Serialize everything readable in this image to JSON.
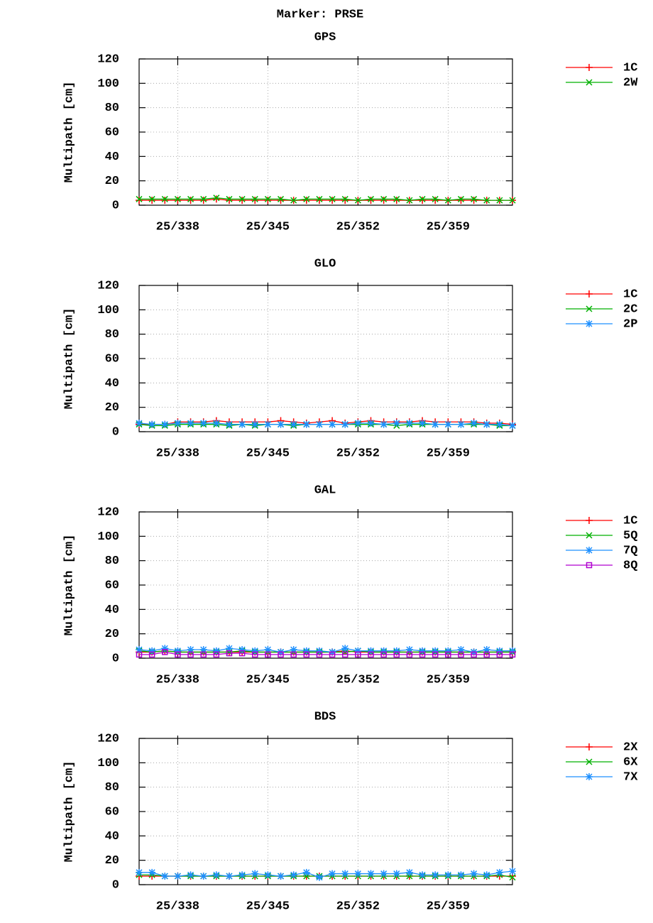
{
  "title": "Marker: PRSE",
  "chart_data": [
    {
      "type": "line",
      "title": "GPS",
      "ylabel": "Multipath [cm]",
      "x": [
        335,
        336,
        337,
        338,
        339,
        340,
        341,
        342,
        343,
        344,
        345,
        346,
        347,
        348,
        349,
        350,
        351,
        352,
        353,
        354,
        355,
        356,
        357,
        358,
        359,
        360,
        361,
        362,
        363,
        364
      ],
      "xlim": [
        335,
        364
      ],
      "xticks": [
        {
          "value": 338,
          "label": "25/338"
        },
        {
          "value": 345,
          "label": "25/345"
        },
        {
          "value": 352,
          "label": "25/352"
        },
        {
          "value": 359,
          "label": "25/359"
        }
      ],
      "ylim": [
        0,
        120
      ],
      "yticks": [
        0,
        20,
        40,
        60,
        80,
        100,
        120
      ],
      "grid": true,
      "series": [
        {
          "name": "1C",
          "color": "#ff0000",
          "marker": "plus",
          "values": [
            4,
            4,
            4,
            4,
            4,
            4,
            5,
            4,
            4,
            4,
            4,
            4,
            4,
            4,
            4,
            4,
            4,
            4,
            4,
            4,
            4,
            4,
            4,
            4,
            4,
            4,
            4,
            4,
            4,
            4
          ]
        },
        {
          "name": "2W",
          "color": "#00b000",
          "marker": "cross",
          "values": [
            5,
            5,
            5,
            5,
            5,
            5,
            6,
            5,
            5,
            5,
            5,
            5,
            4,
            5,
            5,
            5,
            5,
            4,
            5,
            5,
            5,
            4,
            5,
            5,
            4,
            5,
            5,
            4,
            4,
            4
          ]
        }
      ]
    },
    {
      "type": "line",
      "title": "GLO",
      "ylabel": "Multipath [cm]",
      "x": [
        335,
        336,
        337,
        338,
        339,
        340,
        341,
        342,
        343,
        344,
        345,
        346,
        347,
        348,
        349,
        350,
        351,
        352,
        353,
        354,
        355,
        356,
        357,
        358,
        359,
        360,
        361,
        362,
        363,
        364
      ],
      "xlim": [
        335,
        364
      ],
      "xticks": [
        {
          "value": 338,
          "label": "25/338"
        },
        {
          "value": 345,
          "label": "25/345"
        },
        {
          "value": 352,
          "label": "25/352"
        },
        {
          "value": 359,
          "label": "25/359"
        }
      ],
      "ylim": [
        0,
        120
      ],
      "yticks": [
        0,
        20,
        40,
        60,
        80,
        100,
        120
      ],
      "grid": true,
      "series": [
        {
          "name": "1C",
          "color": "#ff0000",
          "marker": "plus",
          "values": [
            6,
            6,
            6,
            8,
            8,
            8,
            9,
            8,
            8,
            8,
            8,
            9,
            8,
            7,
            8,
            9,
            7,
            8,
            9,
            8,
            8,
            8,
            9,
            8,
            8,
            8,
            8,
            7,
            7,
            6
          ]
        },
        {
          "name": "2C",
          "color": "#00b000",
          "marker": "cross",
          "values": [
            6,
            5,
            5,
            6,
            6,
            6,
            6,
            5,
            6,
            5,
            6,
            6,
            5,
            6,
            6,
            6,
            6,
            6,
            6,
            6,
            5,
            6,
            6,
            6,
            6,
            6,
            6,
            6,
            5,
            5
          ]
        },
        {
          "name": "2P",
          "color": "#1e90ff",
          "marker": "star",
          "values": [
            7,
            6,
            6,
            7,
            7,
            7,
            7,
            6,
            6,
            6,
            6,
            6,
            6,
            6,
            6,
            6,
            6,
            7,
            7,
            6,
            7,
            7,
            7,
            6,
            6,
            6,
            7,
            6,
            6,
            5
          ]
        }
      ]
    },
    {
      "type": "line",
      "title": "GAL",
      "ylabel": "Multipath [cm]",
      "x": [
        335,
        336,
        337,
        338,
        339,
        340,
        341,
        342,
        343,
        344,
        345,
        346,
        347,
        348,
        349,
        350,
        351,
        352,
        353,
        354,
        355,
        356,
        357,
        358,
        359,
        360,
        361,
        362,
        363,
        364
      ],
      "xlim": [
        335,
        364
      ],
      "xticks": [
        {
          "value": 338,
          "label": "25/338"
        },
        {
          "value": 345,
          "label": "25/345"
        },
        {
          "value": 352,
          "label": "25/352"
        },
        {
          "value": 359,
          "label": "25/359"
        }
      ],
      "ylim": [
        0,
        120
      ],
      "yticks": [
        0,
        20,
        40,
        60,
        80,
        100,
        120
      ],
      "grid": true,
      "series": [
        {
          "name": "1C",
          "color": "#ff0000",
          "marker": "plus",
          "values": [
            5,
            5,
            6,
            5,
            5,
            5,
            5,
            5,
            5,
            5,
            5,
            5,
            5,
            5,
            5,
            5,
            6,
            5,
            5,
            5,
            5,
            5,
            5,
            5,
            5,
            5,
            5,
            5,
            5,
            5
          ]
        },
        {
          "name": "5Q",
          "color": "#00b000",
          "marker": "cross",
          "values": [
            6,
            5,
            6,
            5,
            5,
            5,
            5,
            5,
            6,
            5,
            5,
            5,
            5,
            5,
            5,
            5,
            5,
            6,
            5,
            5,
            5,
            5,
            5,
            5,
            5,
            5,
            5,
            5,
            5,
            5
          ]
        },
        {
          "name": "7Q",
          "color": "#1e90ff",
          "marker": "star",
          "values": [
            7,
            6,
            8,
            6,
            7,
            7,
            6,
            8,
            7,
            6,
            7,
            5,
            7,
            6,
            6,
            5,
            8,
            6,
            6,
            6,
            6,
            7,
            6,
            6,
            6,
            7,
            5,
            7,
            6,
            6
          ]
        },
        {
          "name": "8Q",
          "color": "#b000d0",
          "marker": "square",
          "values": [
            3,
            3,
            5,
            3,
            3,
            3,
            3,
            4,
            4,
            3,
            3,
            3,
            3,
            3,
            3,
            3,
            3,
            3,
            3,
            3,
            3,
            3,
            3,
            3,
            3,
            3,
            3,
            3,
            3,
            3
          ]
        }
      ]
    },
    {
      "type": "line",
      "title": "BDS",
      "ylabel": "Multipath [cm]",
      "x": [
        335,
        336,
        337,
        338,
        339,
        340,
        341,
        342,
        343,
        344,
        345,
        346,
        347,
        348,
        349,
        350,
        351,
        352,
        353,
        354,
        355,
        356,
        357,
        358,
        359,
        360,
        361,
        362,
        363,
        364
      ],
      "xlim": [
        335,
        364
      ],
      "xticks": [
        {
          "value": 338,
          "label": "25/338"
        },
        {
          "value": 345,
          "label": "25/345"
        },
        {
          "value": 352,
          "label": "25/352"
        },
        {
          "value": 359,
          "label": "25/359"
        }
      ],
      "ylim": [
        0,
        120
      ],
      "yticks": [
        0,
        20,
        40,
        60,
        80,
        100,
        120
      ],
      "grid": true,
      "series": [
        {
          "name": "2X",
          "color": "#ff0000",
          "marker": "plus",
          "values": [
            7,
            7,
            7,
            7,
            7,
            7,
            7,
            7,
            7,
            7,
            7,
            7,
            7,
            7,
            7,
            7,
            7,
            7,
            7,
            7,
            7,
            7,
            7,
            7,
            7,
            7,
            7,
            7,
            7,
            7
          ]
        },
        {
          "name": "6X",
          "color": "#00b000",
          "marker": "cross",
          "values": [
            8,
            8,
            7,
            7,
            7,
            7,
            7,
            7,
            7,
            7,
            7,
            7,
            7,
            7,
            7,
            7,
            7,
            7,
            7,
            7,
            7,
            7,
            7,
            7,
            7,
            7,
            7,
            7,
            8,
            6
          ]
        },
        {
          "name": "7X",
          "color": "#1e90ff",
          "marker": "star",
          "values": [
            10,
            10,
            7,
            7,
            8,
            7,
            8,
            7,
            8,
            9,
            8,
            7,
            8,
            10,
            6,
            9,
            9,
            9,
            9,
            9,
            9,
            10,
            8,
            8,
            8,
            8,
            9,
            8,
            10,
            11
          ]
        }
      ]
    }
  ]
}
